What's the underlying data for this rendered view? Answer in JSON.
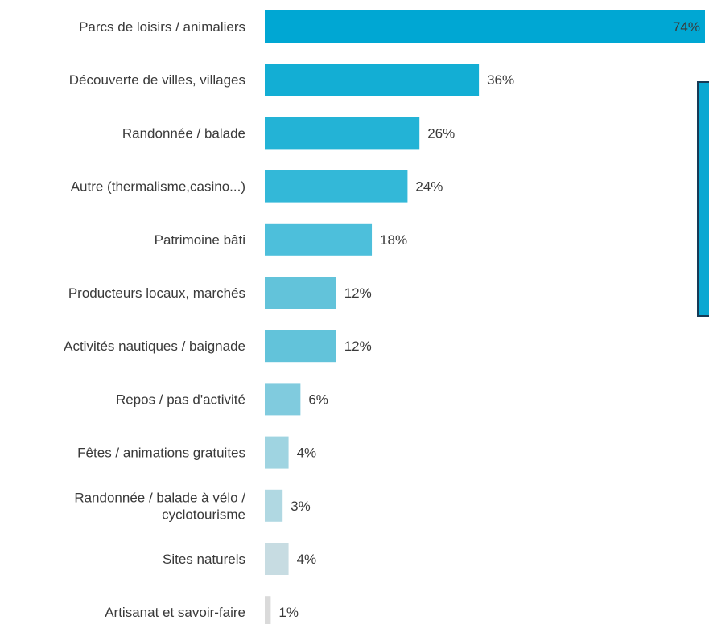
{
  "chart_data": {
    "type": "bar",
    "orientation": "horizontal",
    "categories": [
      "Parcs de loisirs / animaliers",
      "Découverte de villes, villages",
      "Randonnée / balade",
      "Autre (thermalisme,casino...)",
      "Patrimoine bâti",
      "Producteurs locaux, marchés",
      "Activités nautiques / baignade",
      "Repos / pas d'activité",
      "Fêtes / animations gratuites",
      "Randonnée / balade à vélo /\ncyclotourisme",
      "Sites naturels",
      "Artisanat et savoir-faire"
    ],
    "values": [
      74,
      36,
      26,
      24,
      18,
      12,
      12,
      6,
      4,
      3,
      4,
      1
    ],
    "value_labels": [
      "74%",
      "36%",
      "26%",
      "24%",
      "18%",
      "12%",
      "12%",
      "6%",
      "4%",
      "3%",
      "4%",
      "1%"
    ],
    "unit": "%",
    "title": "",
    "xlabel": "",
    "ylabel": "",
    "xlim": [
      0,
      74
    ],
    "grid": false,
    "legend": "none",
    "colors": [
      "#00a7d3",
      "#13aed4",
      "#23b3d6",
      "#33b8d8",
      "#4dbfdb",
      "#62c3da",
      "#62c3da",
      "#80cbde",
      "#9fd4e1",
      "#b0d8e2",
      "#c7dce2",
      "#dadada"
    ]
  },
  "side_box_color": "#0aa8d2"
}
